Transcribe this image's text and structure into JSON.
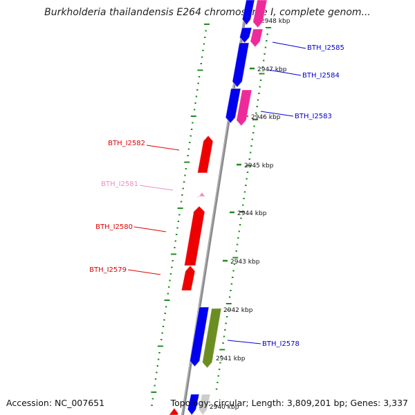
{
  "title": "Burkholderia thailandensis E264 chromosome I, complete genom...",
  "footer": {
    "accession": "Accession: NC_007651",
    "summary": "Topology: circular; Length: 3,809,201 bp; Genes: 3,337"
  },
  "colors": {
    "backbone": "#8a8a8a",
    "tick": "#1e8c1e",
    "forward_gene": "#0000ee",
    "forward_rna": "#ee2a9a",
    "reverse_gene": "#ee0000",
    "reverse_pseudo": "#f08cc0",
    "other_gene": "#6b8e23",
    "label_forward": "#0000cc",
    "label_reverse": "#dd0000",
    "label_pseudo": "#f08cc0"
  },
  "scale_labels": [
    "2948 kbp",
    "2947 kbp",
    "2946 kbp",
    "2945 kbp",
    "2944 kbp",
    "2943 kbp",
    "2942 kbp",
    "2941 kbp",
    "2940 kbp"
  ],
  "gene_labels": [
    {
      "name": "BTH_I2585",
      "strand": "forward"
    },
    {
      "name": "BTH_I2584",
      "strand": "forward"
    },
    {
      "name": "BTH_I2583",
      "strand": "forward"
    },
    {
      "name": "BTH_I2582",
      "strand": "reverse"
    },
    {
      "name": "BTH_I2581",
      "strand": "pseudo"
    },
    {
      "name": "BTH_I2580",
      "strand": "reverse"
    },
    {
      "name": "BTH_I2579",
      "strand": "reverse"
    },
    {
      "name": "BTH_I2578",
      "strand": "forward"
    }
  ]
}
